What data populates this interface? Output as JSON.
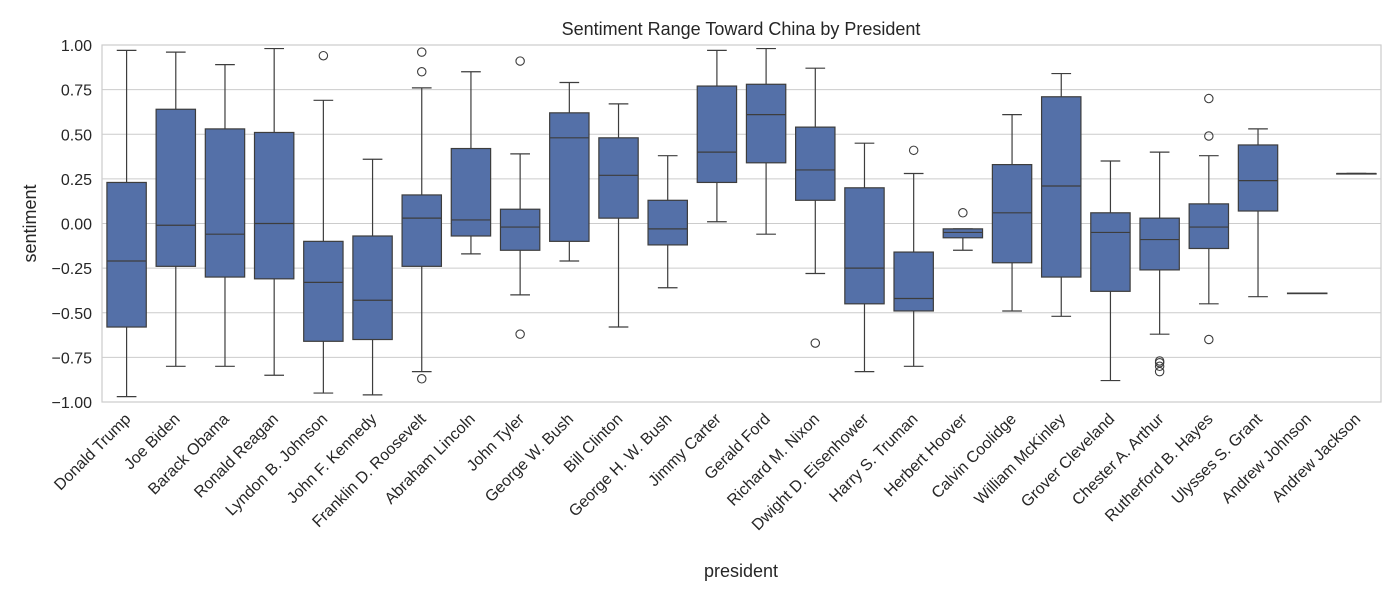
{
  "chart_data": {
    "type": "box",
    "title": "Sentiment Range Toward China by President",
    "xlabel": "president",
    "ylabel": "sentiment",
    "ylim": [
      -1.0,
      1.0
    ],
    "yticks": [
      1.0,
      0.75,
      0.5,
      0.25,
      0.0,
      -0.25,
      -0.5,
      -0.75,
      -1.0
    ],
    "ytick_labels": [
      "1.00",
      "0.75",
      "0.50",
      "0.25",
      "0.00",
      "−0.25",
      "−0.50",
      "−0.75",
      "−1.00"
    ],
    "grid": "horizontal",
    "box_color": "#5470a8",
    "line_color": "#3d3d3d",
    "categories": [
      "Donald Trump",
      "Joe Biden",
      "Barack Obama",
      "Ronald Reagan",
      "Lyndon B. Johnson",
      "John F. Kennedy",
      "Franklin D. Roosevelt",
      "Abraham Lincoln",
      "John Tyler",
      "George W. Bush",
      "Bill Clinton",
      "George H. W. Bush",
      "Jimmy Carter",
      "Gerald Ford",
      "Richard M. Nixon",
      "Dwight D. Eisenhower",
      "Harry S. Truman",
      "Herbert Hoover",
      "Calvin Coolidge",
      "William McKinley",
      "Grover Cleveland",
      "Chester A. Arthur",
      "Rutherford B. Hayes",
      "Ulysses S. Grant",
      "Andrew Johnson",
      "Andrew Jackson"
    ],
    "boxes": [
      {
        "whislo": -0.97,
        "q1": -0.58,
        "med": -0.21,
        "q3": 0.23,
        "whishi": 0.97,
        "fliers": []
      },
      {
        "whislo": -0.8,
        "q1": -0.24,
        "med": -0.01,
        "q3": 0.64,
        "whishi": 0.96,
        "fliers": []
      },
      {
        "whislo": -0.8,
        "q1": -0.3,
        "med": -0.06,
        "q3": 0.53,
        "whishi": 0.89,
        "fliers": []
      },
      {
        "whislo": -0.85,
        "q1": -0.31,
        "med": 0.0,
        "q3": 0.51,
        "whishi": 0.98,
        "fliers": []
      },
      {
        "whislo": -0.95,
        "q1": -0.66,
        "med": -0.33,
        "q3": -0.1,
        "whishi": 0.69,
        "fliers": [
          0.94
        ]
      },
      {
        "whislo": -0.96,
        "q1": -0.65,
        "med": -0.43,
        "q3": -0.07,
        "whishi": 0.36,
        "fliers": []
      },
      {
        "whislo": -0.83,
        "q1": -0.24,
        "med": 0.03,
        "q3": 0.16,
        "whishi": 0.76,
        "fliers": [
          0.96,
          0.85,
          -0.87
        ]
      },
      {
        "whislo": -0.17,
        "q1": -0.07,
        "med": 0.02,
        "q3": 0.42,
        "whishi": 0.85,
        "fliers": []
      },
      {
        "whislo": -0.4,
        "q1": -0.15,
        "med": -0.02,
        "q3": 0.08,
        "whishi": 0.39,
        "fliers": [
          0.91,
          -0.62
        ]
      },
      {
        "whislo": -0.21,
        "q1": -0.1,
        "med": 0.48,
        "q3": 0.62,
        "whishi": 0.79,
        "fliers": []
      },
      {
        "whislo": -0.58,
        "q1": 0.03,
        "med": 0.27,
        "q3": 0.48,
        "whishi": 0.67,
        "fliers": []
      },
      {
        "whislo": -0.36,
        "q1": -0.12,
        "med": -0.03,
        "q3": 0.13,
        "whishi": 0.38,
        "fliers": []
      },
      {
        "whislo": 0.01,
        "q1": 0.23,
        "med": 0.4,
        "q3": 0.77,
        "whishi": 0.97,
        "fliers": []
      },
      {
        "whislo": -0.06,
        "q1": 0.34,
        "med": 0.61,
        "q3": 0.78,
        "whishi": 0.98,
        "fliers": []
      },
      {
        "whislo": -0.28,
        "q1": 0.13,
        "med": 0.3,
        "q3": 0.54,
        "whishi": 0.87,
        "fliers": [
          -0.67
        ]
      },
      {
        "whislo": -0.83,
        "q1": -0.45,
        "med": -0.25,
        "q3": 0.2,
        "whishi": 0.45,
        "fliers": []
      },
      {
        "whislo": -0.8,
        "q1": -0.49,
        "med": -0.42,
        "q3": -0.16,
        "whishi": 0.28,
        "fliers": [
          0.41
        ]
      },
      {
        "whislo": -0.15,
        "q1": -0.08,
        "med": -0.05,
        "q3": -0.03,
        "whishi": -0.03,
        "fliers": [
          0.06
        ]
      },
      {
        "whislo": -0.49,
        "q1": -0.22,
        "med": 0.06,
        "q3": 0.33,
        "whishi": 0.61,
        "fliers": []
      },
      {
        "whislo": -0.52,
        "q1": -0.3,
        "med": 0.21,
        "q3": 0.71,
        "whishi": 0.84,
        "fliers": []
      },
      {
        "whislo": -0.88,
        "q1": -0.38,
        "med": -0.05,
        "q3": 0.06,
        "whishi": 0.35,
        "fliers": []
      },
      {
        "whislo": -0.62,
        "q1": -0.26,
        "med": -0.09,
        "q3": 0.03,
        "whishi": 0.4,
        "fliers": [
          -0.77,
          -0.78,
          -0.8,
          -0.83
        ]
      },
      {
        "whislo": -0.45,
        "q1": -0.14,
        "med": -0.02,
        "q3": 0.11,
        "whishi": 0.38,
        "fliers": [
          0.7,
          0.49,
          -0.65
        ]
      },
      {
        "whislo": -0.41,
        "q1": 0.07,
        "med": 0.24,
        "q3": 0.44,
        "whishi": 0.53,
        "fliers": []
      },
      {
        "whislo": -0.39,
        "q1": -0.39,
        "med": -0.39,
        "q3": -0.39,
        "whishi": -0.39,
        "fliers": []
      },
      {
        "whislo": 0.28,
        "q1": 0.28,
        "med": 0.28,
        "q3": 0.28,
        "whishi": 0.28,
        "fliers": []
      }
    ]
  }
}
